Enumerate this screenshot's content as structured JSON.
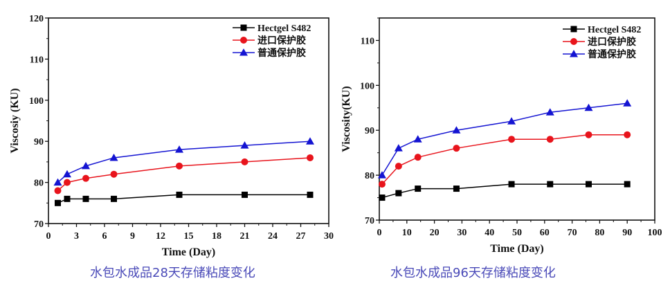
{
  "chart_data": [
    {
      "type": "line",
      "title": "水包水成品28天存储粘度变化",
      "xlabel": "Time (Day)",
      "ylabel": "Viscosiy (KU)",
      "xlim": [
        0,
        30
      ],
      "ylim": [
        70,
        120
      ],
      "xticks": [
        0,
        3,
        6,
        9,
        12,
        15,
        18,
        21,
        24,
        27,
        30
      ],
      "yticks": [
        70,
        80,
        90,
        100,
        110,
        120
      ],
      "grid": false,
      "legend_position": "top-right",
      "x": [
        1,
        2,
        4,
        7,
        14,
        21,
        28
      ],
      "series": [
        {
          "name": "Hectgel S482",
          "color": "#000000",
          "marker": "square",
          "values": [
            75,
            76,
            76,
            76,
            77,
            77,
            77
          ]
        },
        {
          "name": "进口保护胶",
          "color": "#e8141c",
          "marker": "circle",
          "values": [
            78,
            80,
            81,
            82,
            84,
            85,
            86
          ]
        },
        {
          "name": "普通保护胶",
          "color": "#1414d2",
          "marker": "triangle",
          "values": [
            80,
            82,
            84,
            86,
            88,
            89,
            90
          ]
        }
      ]
    },
    {
      "type": "line",
      "title": "水包水成品96天存储粘度变化",
      "xlabel": "Time (Day)",
      "ylabel": "Viscosity(KU)",
      "xlim": [
        0,
        100
      ],
      "ylim": [
        70,
        115
      ],
      "xticks": [
        0,
        10,
        20,
        30,
        40,
        50,
        60,
        70,
        80,
        90,
        100
      ],
      "yticks": [
        70,
        80,
        90,
        100,
        110
      ],
      "grid": false,
      "legend_position": "top-right",
      "x": [
        1,
        7,
        14,
        28,
        48,
        62,
        76,
        90
      ],
      "series": [
        {
          "name": "Hectgel S482",
          "color": "#000000",
          "marker": "square",
          "values": [
            75,
            76,
            77,
            77,
            78,
            78,
            78,
            78
          ]
        },
        {
          "name": "进口保护胶",
          "color": "#e8141c",
          "marker": "circle",
          "values": [
            78,
            82,
            84,
            86,
            88,
            88,
            89,
            89
          ]
        },
        {
          "name": "普通保护胶",
          "color": "#1414d2",
          "marker": "triangle",
          "values": [
            80,
            86,
            88,
            90,
            92,
            94,
            95,
            96
          ]
        }
      ]
    }
  ]
}
